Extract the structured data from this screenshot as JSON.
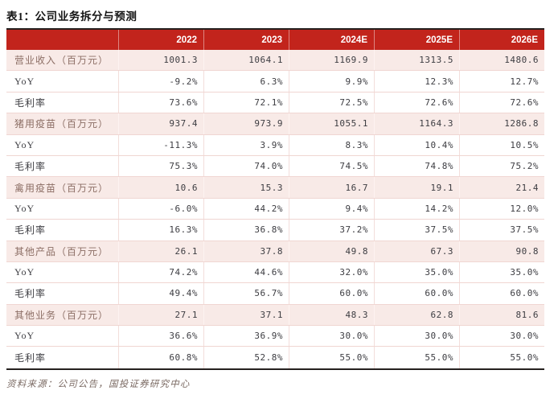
{
  "title": "表1：公司业务拆分与预测",
  "source_note": "资料来源：公司公告，国投证券研究中心",
  "colors": {
    "header_bg": "#c2241c",
    "header_text": "#ffffff",
    "group_row_bg": "#f8eae7",
    "group_label_text": "#8c6e65",
    "body_text": "#3d3d42",
    "row_divider": "#f0d6d2",
    "table_frame": "#26211f",
    "source_text": "#7b6a63"
  },
  "chart_data": {
    "type": "table",
    "columns": [
      "",
      "2022",
      "2023",
      "2024E",
      "2025E",
      "2026E"
    ],
    "rows": [
      {
        "label": "营业收入（百万元）",
        "group": true,
        "values": [
          "1001.3",
          "1064.1",
          "1169.9",
          "1313.5",
          "1480.6"
        ]
      },
      {
        "label": "YoY",
        "group": false,
        "values": [
          "-9.2%",
          "6.3%",
          "9.9%",
          "12.3%",
          "12.7%"
        ]
      },
      {
        "label": "毛利率",
        "group": false,
        "values": [
          "73.6%",
          "72.1%",
          "72.5%",
          "72.6%",
          "72.6%"
        ]
      },
      {
        "label": "猪用疫苗（百万元）",
        "group": true,
        "values": [
          "937.4",
          "973.9",
          "1055.1",
          "1164.3",
          "1286.8"
        ]
      },
      {
        "label": "YoY",
        "group": false,
        "values": [
          "-11.3%",
          "3.9%",
          "8.3%",
          "10.4%",
          "10.5%"
        ]
      },
      {
        "label": "毛利率",
        "group": false,
        "values": [
          "75.3%",
          "74.0%",
          "74.5%",
          "74.8%",
          "75.2%"
        ]
      },
      {
        "label": "禽用疫苗（百万元）",
        "group": true,
        "values": [
          "10.6",
          "15.3",
          "16.7",
          "19.1",
          "21.4"
        ]
      },
      {
        "label": "YoY",
        "group": false,
        "values": [
          "-6.0%",
          "44.2%",
          "9.4%",
          "14.2%",
          "12.0%"
        ]
      },
      {
        "label": "毛利率",
        "group": false,
        "values": [
          "16.3%",
          "36.8%",
          "37.2%",
          "37.5%",
          "37.5%"
        ]
      },
      {
        "label": "其他产品（百万元）",
        "group": true,
        "values": [
          "26.1",
          "37.8",
          "49.8",
          "67.3",
          "90.8"
        ]
      },
      {
        "label": "YoY",
        "group": false,
        "values": [
          "74.2%",
          "44.6%",
          "32.0%",
          "35.0%",
          "35.0%"
        ]
      },
      {
        "label": "毛利率",
        "group": false,
        "values": [
          "49.4%",
          "56.7%",
          "60.0%",
          "60.0%",
          "60.0%"
        ]
      },
      {
        "label": "其他业务（百万元）",
        "group": true,
        "values": [
          "27.1",
          "37.1",
          "48.3",
          "62.8",
          "81.6"
        ]
      },
      {
        "label": "YoY",
        "group": false,
        "values": [
          "36.6%",
          "36.9%",
          "30.0%",
          "30.0%",
          "30.0%"
        ]
      },
      {
        "label": "毛利率",
        "group": false,
        "values": [
          "60.8%",
          "52.8%",
          "55.0%",
          "55.0%",
          "55.0%"
        ]
      }
    ]
  }
}
